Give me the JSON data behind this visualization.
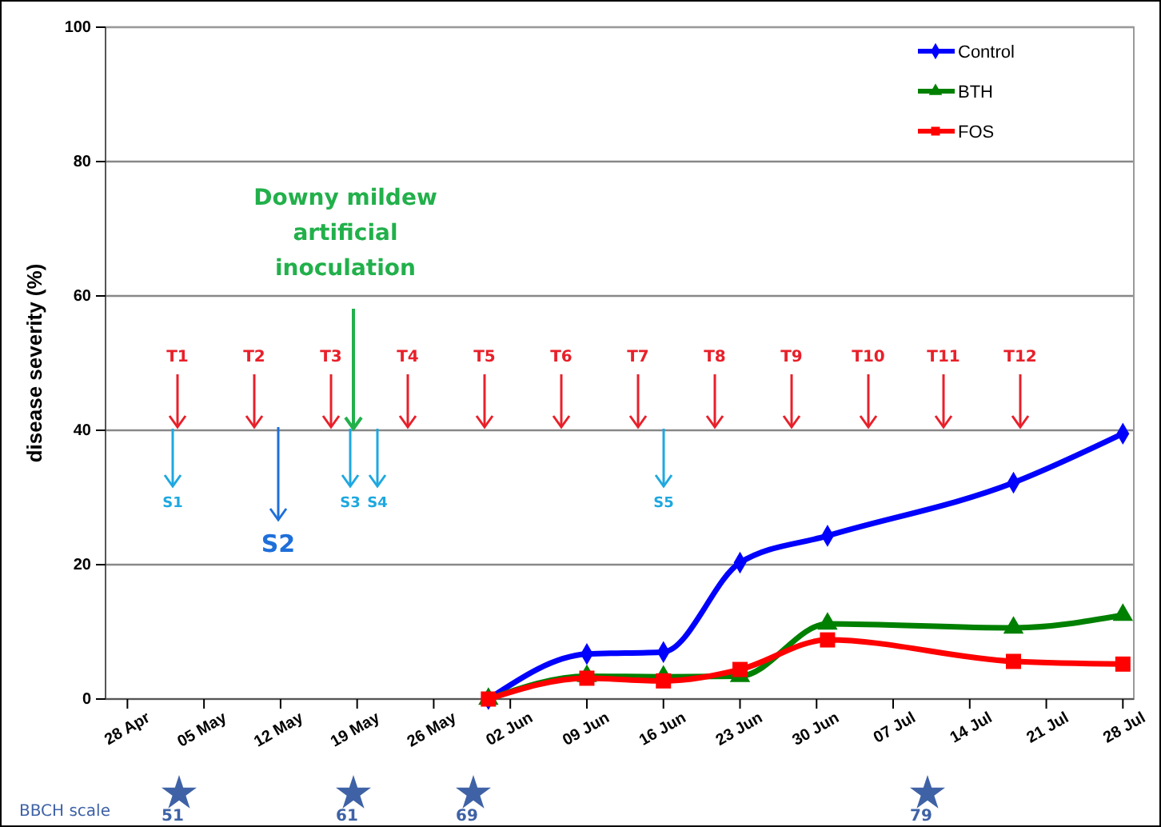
{
  "chart_data": {
    "type": "line",
    "ylabel": "disease severity (%)",
    "x": [
      "--05-31",
      "--06-09",
      "--06-16",
      "--06-23",
      "--07-01",
      "--07-18",
      "--07-28"
    ],
    "series": [
      {
        "name": "Control",
        "color": "#0000ff",
        "marker": "diamond",
        "values": [
          0,
          6.7,
          7.0,
          20.3,
          24.3,
          32.2,
          39.5
        ]
      },
      {
        "name": "BTH",
        "color": "#008000",
        "marker": "triangle",
        "values": [
          0,
          3.4,
          3.3,
          3.4,
          11.2,
          10.6,
          12.5
        ]
      },
      {
        "name": "FOS",
        "color": "#ff0000",
        "marker": "square",
        "values": [
          0,
          3.1,
          2.7,
          4.4,
          8.8,
          5.6,
          5.2
        ]
      }
    ],
    "xlim": [
      "--04-26",
      "--07-29"
    ],
    "xticks": [
      {
        "value": "--04-28",
        "label": "28 Apr"
      },
      {
        "value": "--05-05",
        "label": "05 May"
      },
      {
        "value": "--05-12",
        "label": "12 May"
      },
      {
        "value": "--05-19",
        "label": "19 May"
      },
      {
        "value": "--05-26",
        "label": "26 May"
      },
      {
        "value": "--06-02",
        "label": "02 Jun"
      },
      {
        "value": "--06-09",
        "label": "09 Jun"
      },
      {
        "value": "--06-16",
        "label": "16 Jun"
      },
      {
        "value": "--06-23",
        "label": "23 Jun"
      },
      {
        "value": "--06-30",
        "label": "30 Jun"
      },
      {
        "value": "--07-07",
        "label": "07 Jul"
      },
      {
        "value": "--07-14",
        "label": "14 Jul"
      },
      {
        "value": "--07-21",
        "label": "21 Jul"
      },
      {
        "value": "--07-28",
        "label": "28 Jul"
      }
    ],
    "ylim": [
      0,
      100
    ],
    "yticks": [
      0,
      20,
      40,
      60,
      80,
      100
    ],
    "grid": "y",
    "legend": "top right",
    "line_style": "solid",
    "annotations": [
      "T1",
      "T2",
      "T3",
      "T4",
      "T5",
      "T6",
      "T7",
      "T8",
      "T9",
      "T10",
      "T11",
      "T12",
      "S1",
      "S2",
      "S3",
      "S4",
      "S5",
      "Downy mildew\nartificial\ninoculation",
      "BBCH scale",
      "51",
      "61",
      "69",
      "79"
    ]
  }
}
